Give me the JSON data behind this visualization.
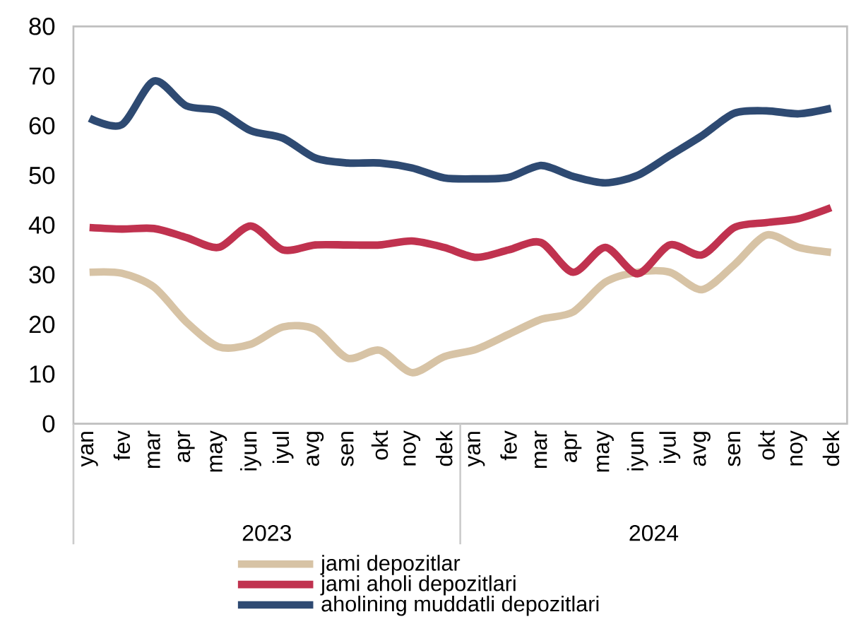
{
  "chart_data": {
    "type": "line",
    "categories": [
      "yan",
      "fev",
      "mar",
      "apr",
      "may",
      "iyun",
      "iyul",
      "avg",
      "sen",
      "okt",
      "noy",
      "dek",
      "yan",
      "fev",
      "mar",
      "apr",
      "may",
      "iyun",
      "iyul",
      "avg",
      "sen",
      "okt",
      "noy",
      "dek"
    ],
    "annotations": [
      "2023",
      "2024"
    ],
    "series": [
      {
        "name": "jami depozitlar",
        "color": "#d7c3a5",
        "values": [
          30.5,
          30.3,
          27.5,
          20.5,
          15.5,
          16,
          19.5,
          19,
          13.2,
          14.8,
          10.3,
          13.5,
          15,
          18,
          21,
          22.5,
          28.5,
          30.5,
          30.5,
          27,
          32,
          38,
          35.5,
          34.5
        ]
      },
      {
        "name": "jami aholi depozitlari",
        "color": "#c0324f",
        "values": [
          39.5,
          39.2,
          39.3,
          37.5,
          35.5,
          39.8,
          35,
          36,
          36,
          36,
          36.8,
          35.5,
          33.5,
          35,
          36.5,
          30.5,
          35.5,
          30.2,
          36,
          34,
          39.5,
          40.5,
          41.3,
          43.5
        ]
      },
      {
        "name": "aholining muddatli depozitlari",
        "color": "#2e4a72",
        "values": [
          61.5,
          60.2,
          69,
          64,
          63,
          59,
          57.5,
          53.5,
          52.5,
          52.5,
          51.5,
          49.5,
          49.3,
          49.6,
          52,
          49.8,
          48.5,
          50,
          54,
          58,
          62.5,
          63,
          62.4,
          63.5
        ]
      }
    ],
    "ylim": [
      0,
      80
    ],
    "yticks": [
      0,
      10,
      20,
      30,
      40,
      50,
      60,
      70,
      80
    ],
    "grid": false,
    "legend": "bottom",
    "line_style": "solid",
    "marker": "none"
  }
}
